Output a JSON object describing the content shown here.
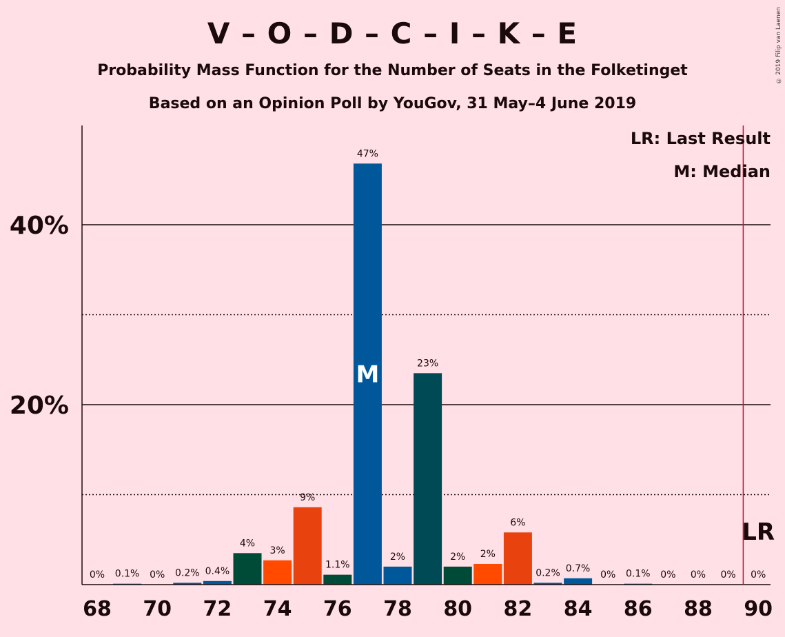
{
  "title": "V – O – D – C – I – K – E",
  "subtitle1": "Probability Mass Function for the Number of Seats in the Folketinget",
  "subtitle2": "Based on an Opinion Poll by YouGov, 31 May–4 June 2019",
  "copyright": "© 2019 Filip van Laenen",
  "legend": {
    "last_result": "LR: Last Result",
    "median": "M: Median"
  },
  "chart_data": {
    "type": "bar",
    "x": [
      68,
      69,
      70,
      71,
      72,
      73,
      74,
      75,
      76,
      77,
      78,
      79,
      80,
      81,
      82,
      83,
      84,
      85,
      86,
      87,
      88,
      89,
      90
    ],
    "values": [
      0,
      0.1,
      0,
      0.2,
      0.4,
      3.5,
      2.7,
      8.6,
      1.1,
      46.8,
      2.0,
      23.5,
      2.0,
      2.3,
      5.8,
      0.2,
      0.7,
      0,
      0.1,
      0,
      0,
      0,
      0
    ],
    "labels": [
      "0%",
      "0.1%",
      "0%",
      "0.2%",
      "0.4%",
      "4%",
      "3%",
      "9%",
      "1.1%",
      "47%",
      "2%",
      "23%",
      "2%",
      "2%",
      "6%",
      "0.2%",
      "0.7%",
      "0%",
      "0.1%",
      "0%",
      "0%",
      "0%",
      "0%"
    ],
    "colors": [
      "#00579a",
      "#00579a",
      "#00579a",
      "#00579a",
      "#00579a",
      "#004a38",
      "#ff4a00",
      "#e8420f",
      "#004a38",
      "#00579a",
      "#00579a",
      "#004a55",
      "#004a38",
      "#ff4a00",
      "#e8420f",
      "#00579a",
      "#00579a",
      "#00579a",
      "#00579a",
      "#00579a",
      "#00579a",
      "#00579a",
      "#00579a"
    ],
    "x_ticks": [
      "68",
      "70",
      "72",
      "74",
      "76",
      "78",
      "80",
      "82",
      "84",
      "86",
      "88",
      "90"
    ],
    "y_ticks": [
      "20%",
      "40%"
    ],
    "ylim": [
      0,
      50
    ],
    "median_seat": 77,
    "median_marker": "M",
    "last_result_seat": 90,
    "last_result_marker": "LR",
    "line_color": "#c8102e"
  }
}
